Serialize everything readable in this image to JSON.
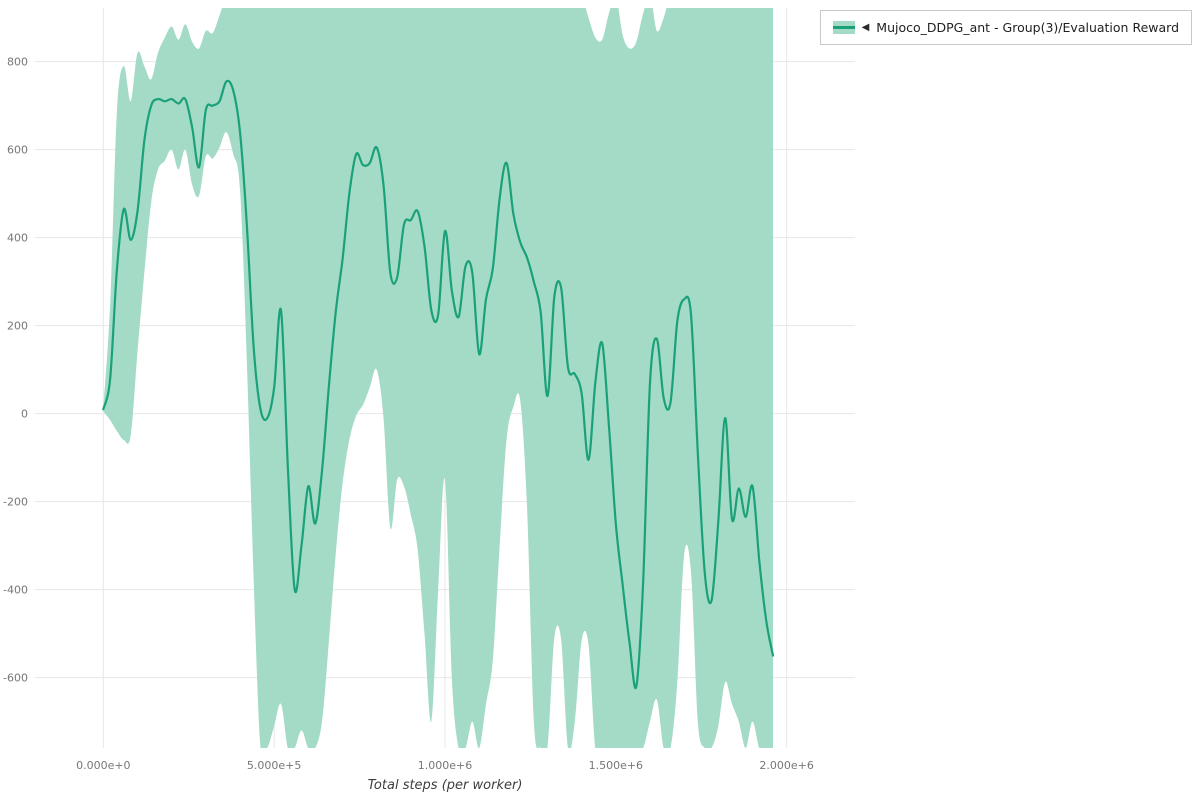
{
  "page": {
    "background": "#ffffff"
  },
  "legend": {
    "toggle_icon": "◀",
    "label": "Mujoco_DDPG_ant - Group(3)/Evaluation Reward",
    "border_color": "#c9c9c9",
    "background": "#ffffff"
  },
  "chart_data": {
    "type": "line",
    "title": "",
    "xlabel": "Total steps (per worker)",
    "ylabel": "",
    "legend_position": "top-right-outside",
    "grid": true,
    "grid_color": "#e7e7e7",
    "background": "#ffffff",
    "tick_label_color": "#777777",
    "xlim": [
      -200000,
      2200000
    ],
    "ylim": [
      -760,
      922
    ],
    "x_unit": "steps",
    "x_start": 0,
    "x_step": 20000,
    "x_axis": {
      "title": "Total steps (per worker)",
      "ticks": [
        {
          "v": 0,
          "label": "0.000e+0"
        },
        {
          "v": 500000,
          "label": "5.000e+5"
        },
        {
          "v": 1000000,
          "label": "1.000e+6"
        },
        {
          "v": 1500000,
          "label": "1.500e+6"
        },
        {
          "v": 2000000,
          "label": "2.000e+6"
        }
      ]
    },
    "y_axis": {
      "ticks": [
        {
          "v": 800,
          "label": "800"
        },
        {
          "v": 600,
          "label": "600"
        },
        {
          "v": 400,
          "label": "400"
        },
        {
          "v": 200,
          "label": "200"
        },
        {
          "v": 0,
          "label": "0"
        },
        {
          "v": -200,
          "label": "-200"
        },
        {
          "v": -400,
          "label": "-400"
        },
        {
          "v": -600,
          "label": "-600"
        }
      ]
    },
    "series": [
      {
        "name": "Mujoco_DDPG_ant - Group(3)/Evaluation Reward",
        "color": "#1aa179",
        "band_color": "#a4dbc6",
        "mean": [
          10,
          80,
          330,
          465,
          395,
          460,
          620,
          700,
          715,
          710,
          715,
          705,
          715,
          650,
          560,
          690,
          700,
          710,
          755,
          735,
          640,
          430,
          150,
          10,
          -10,
          60,
          235,
          -120,
          -400,
          -300,
          -165,
          -250,
          -130,
          60,
          230,
          350,
          500,
          590,
          565,
          570,
          605,
          520,
          320,
          310,
          430,
          440,
          460,
          380,
          235,
          225,
          415,
          280,
          220,
          335,
          320,
          135,
          260,
          330,
          490,
          570,
          455,
          390,
          355,
          300,
          230,
          40,
          265,
          285,
          105,
          90,
          45,
          -105,
          70,
          160,
          -30,
          -250,
          -390,
          -520,
          -620,
          -380,
          70,
          170,
          35,
          25,
          210,
          260,
          225,
          -90,
          -360,
          -425,
          -245,
          -10,
          -240,
          -170,
          -235,
          -165,
          -335,
          -470,
          -550
        ],
        "lower": [
          5,
          -15,
          -40,
          -60,
          -50,
          140,
          320,
          480,
          555,
          575,
          600,
          555,
          600,
          520,
          495,
          585,
          580,
          605,
          640,
          590,
          510,
          120,
          -380,
          -760,
          -760,
          -710,
          -660,
          -760,
          -760,
          -720,
          -760,
          -760,
          -700,
          -520,
          -320,
          -160,
          -60,
          -5,
          20,
          60,
          100,
          -10,
          -260,
          -150,
          -165,
          -230,
          -310,
          -500,
          -700,
          -400,
          -150,
          -600,
          -760,
          -760,
          -700,
          -760,
          -660,
          -560,
          -300,
          -60,
          15,
          30,
          -210,
          -700,
          -760,
          -760,
          -510,
          -515,
          -760,
          -700,
          -515,
          -525,
          -760,
          -760,
          -760,
          -760,
          -760,
          -760,
          -760,
          -760,
          -700,
          -650,
          -760,
          -760,
          -610,
          -320,
          -360,
          -700,
          -760,
          -760,
          -710,
          -610,
          -660,
          -700,
          -760,
          -700,
          -760,
          -760,
          -760
        ],
        "upper": [
          15,
          250,
          690,
          790,
          710,
          820,
          790,
          760,
          820,
          855,
          880,
          850,
          885,
          845,
          830,
          870,
          865,
          905,
          950,
          950,
          950,
          950,
          950,
          950,
          950,
          950,
          950,
          950,
          950,
          950,
          950,
          950,
          950,
          950,
          950,
          950,
          950,
          950,
          950,
          950,
          950,
          950,
          950,
          950,
          950,
          950,
          950,
          950,
          950,
          950,
          950,
          950,
          950,
          950,
          950,
          950,
          950,
          950,
          950,
          950,
          950,
          950,
          950,
          950,
          950,
          950,
          950,
          950,
          950,
          950,
          950,
          900,
          855,
          850,
          910,
          950,
          860,
          830,
          845,
          910,
          950,
          870,
          900,
          950,
          950,
          950,
          950,
          950,
          950,
          950,
          950,
          950,
          950,
          950,
          950,
          950,
          950,
          950,
          950
        ]
      }
    ]
  }
}
